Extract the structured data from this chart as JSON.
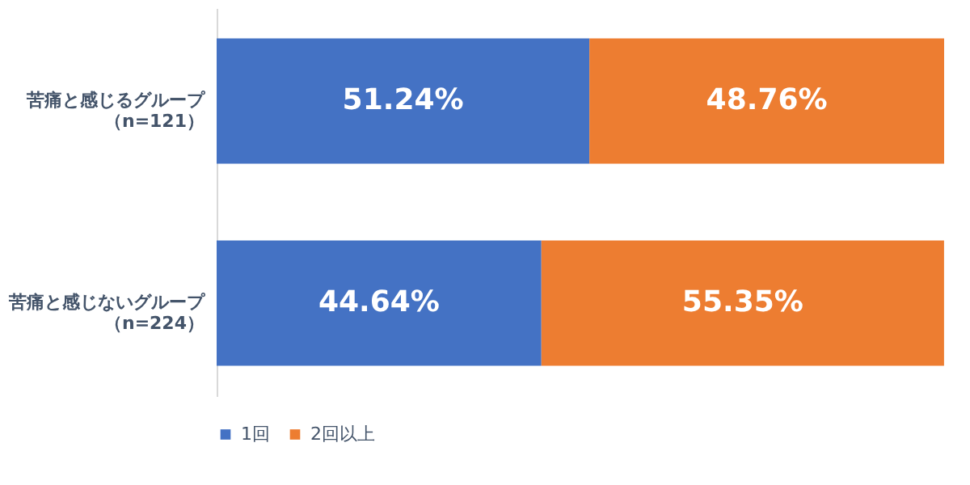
{
  "chart_data": {
    "type": "bar",
    "orientation": "horizontal",
    "stacked": true,
    "categories": [
      "苦痛と感じるグループ（n=121）",
      "苦痛と感じないグループ（n=224）"
    ],
    "series": [
      {
        "name": "1回",
        "color": "#4472c4",
        "values": [
          51.24,
          44.64
        ],
        "value_labels": [
          "51.24%",
          "44.64%"
        ]
      },
      {
        "name": "2回以上",
        "color": "#ed7d31",
        "values": [
          48.76,
          55.35
        ],
        "value_labels": [
          "48.76%",
          "55.35%"
        ]
      }
    ],
    "xlim": [
      0,
      100
    ],
    "tick_labels": "y",
    "grid": false,
    "legend": "bottom"
  }
}
